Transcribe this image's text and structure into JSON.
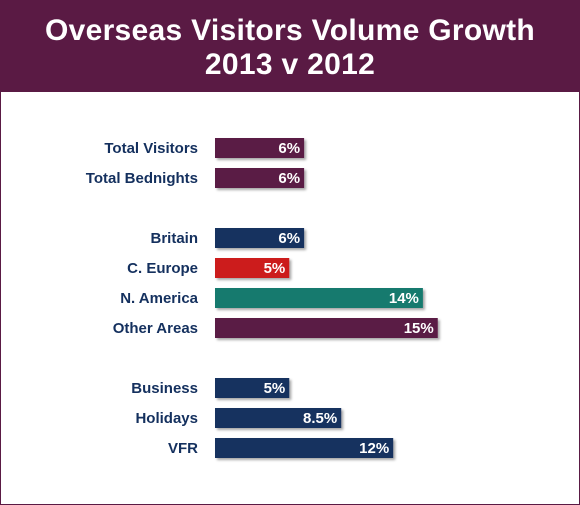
{
  "header": {
    "title_line1": "Overseas Visitors Volume Growth",
    "title_line2": "2013 v 2012"
  },
  "colors": {
    "header_bg": "#5a1a44",
    "label_text": "#14305e",
    "purple": "#5a1a44",
    "navy": "#14305e",
    "red": "#cc1f1f",
    "teal": "#177a6e"
  },
  "chart_data": {
    "type": "bar",
    "orientation": "horizontal",
    "title": "Overseas Visitors Volume Growth 2013 v 2012",
    "unit": "%",
    "groups": [
      {
        "items": [
          {
            "category": "Total Visitors",
            "value": 6,
            "label": "6%",
            "color": "#5a1a44"
          },
          {
            "category": "Total Bednights",
            "value": 6,
            "label": "6%",
            "color": "#5a1a44"
          }
        ]
      },
      {
        "items": [
          {
            "category": "Britain",
            "value": 6,
            "label": "6%",
            "color": "#14305e"
          },
          {
            "category": "C. Europe",
            "value": 5,
            "label": "5%",
            "color": "#cc1f1f"
          },
          {
            "category": "N. America",
            "value": 14,
            "label": "14%",
            "color": "#177a6e"
          },
          {
            "category": "Other Areas",
            "value": 15,
            "label": "15%",
            "color": "#5a1a44"
          }
        ]
      },
      {
        "items": [
          {
            "category": "Business",
            "value": 5,
            "label": "5%",
            "color": "#14305e"
          },
          {
            "category": "Holidays",
            "value": 8.5,
            "label": "8.5%",
            "color": "#14305e"
          },
          {
            "category": "VFR",
            "value": 12,
            "label": "12%",
            "color": "#14305e"
          }
        ]
      }
    ]
  }
}
